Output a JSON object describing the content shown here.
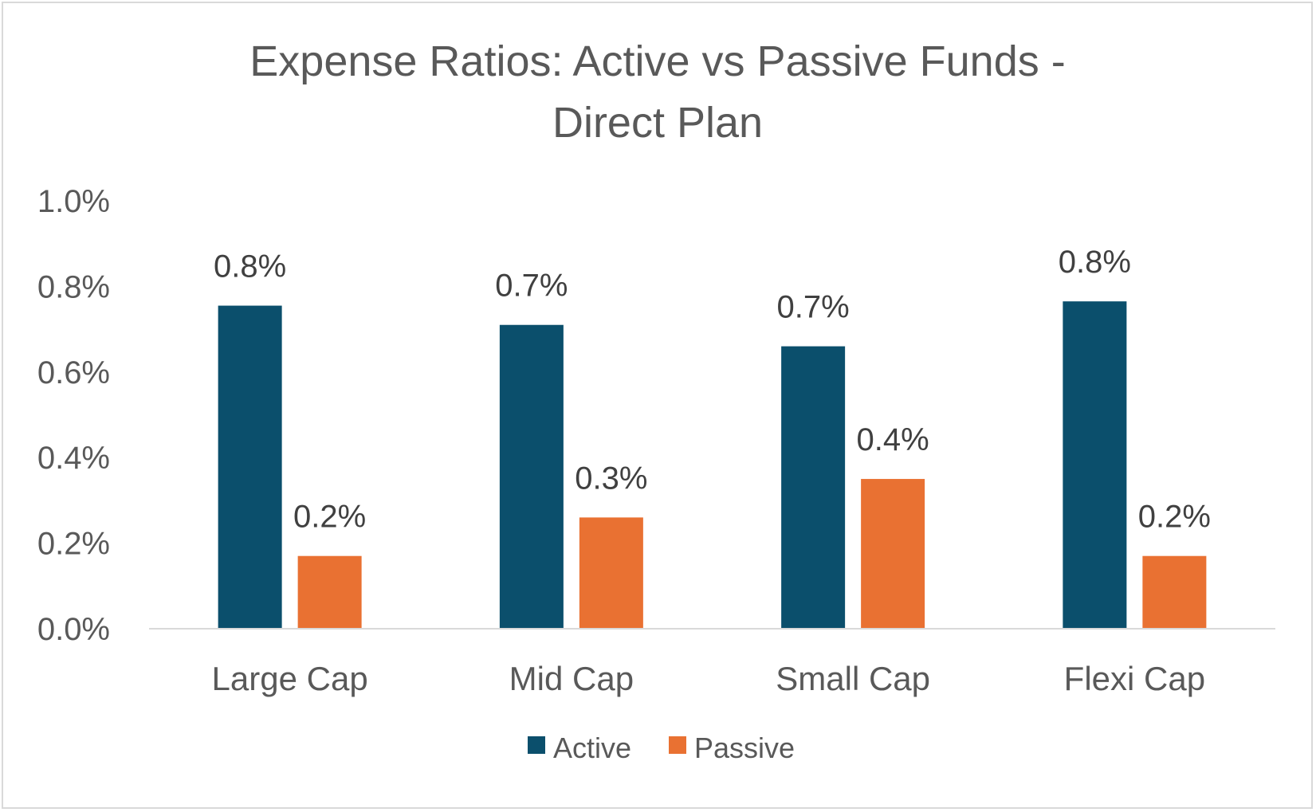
{
  "chart_data": {
    "type": "bar",
    "title": "Expense Ratios: Active vs Passive Funds - Direct Plan",
    "title_lines": [
      "Expense Ratios: Active vs Passive Funds -",
      "Direct Plan"
    ],
    "categories": [
      "Large Cap",
      "Mid Cap",
      "Small Cap",
      "Flexi Cap"
    ],
    "series": [
      {
        "name": "Active",
        "color": "#0b4f6c",
        "values": [
          0.755,
          0.71,
          0.66,
          0.765
        ],
        "labels": [
          "0.8%",
          "0.7%",
          "0.7%",
          "0.8%"
        ]
      },
      {
        "name": "Passive",
        "color": "#e97132",
        "values": [
          0.17,
          0.26,
          0.35,
          0.17
        ],
        "labels": [
          "0.2%",
          "0.3%",
          "0.4%",
          "0.2%"
        ]
      }
    ],
    "ylim": [
      0,
      1.0
    ],
    "yticks": [
      0.0,
      0.2,
      0.4,
      0.6,
      0.8,
      1.0
    ],
    "ytick_labels": [
      "0.0%",
      "0.2%",
      "0.4%",
      "0.6%",
      "0.8%",
      "1.0%"
    ],
    "xlabel": "",
    "ylabel": "",
    "grid": false,
    "legend_position": "bottom"
  }
}
